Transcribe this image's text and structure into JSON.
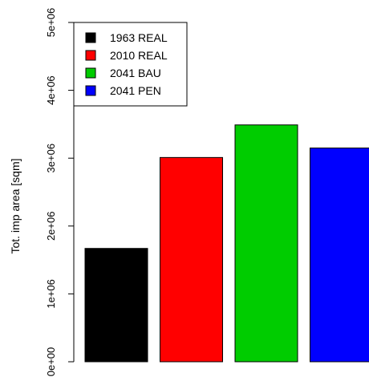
{
  "chart_data": {
    "type": "bar",
    "title": "",
    "xlabel": "",
    "ylabel": "Tot. imp area [sqm]",
    "ylim": [
      0,
      5000000
    ],
    "grid": false,
    "legend_position": "top-left",
    "yticks": [
      {
        "value": 0,
        "label": "0e+00"
      },
      {
        "value": 1000000,
        "label": "1e+06"
      },
      {
        "value": 2000000,
        "label": "2e+06"
      },
      {
        "value": 3000000,
        "label": "3e+06"
      },
      {
        "value": 4000000,
        "label": "4e+06"
      },
      {
        "value": 5000000,
        "label": "5e+06"
      }
    ],
    "categories": [
      "1963 REAL",
      "2010 REAL",
      "2041 BAU",
      "2041 PEN"
    ],
    "values": [
      1670000,
      3010000,
      3490000,
      3150000
    ],
    "colors": [
      "#000000",
      "#ff0000",
      "#00cc00",
      "#0000ff"
    ]
  }
}
